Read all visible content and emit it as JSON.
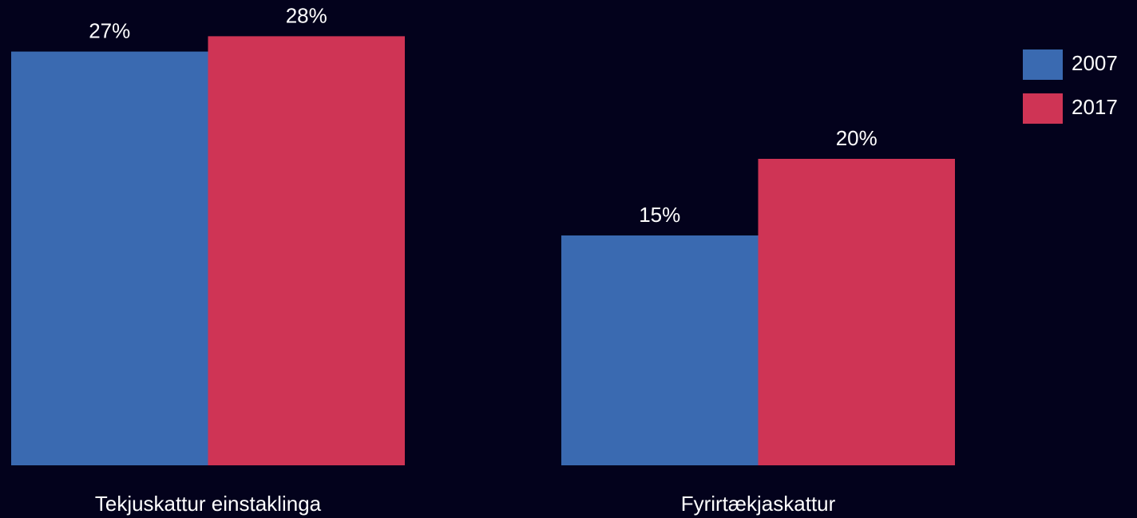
{
  "chart_data": {
    "type": "bar",
    "categories": [
      "Tekjuskattur einstaklinga",
      "Fyrirtækjaskattur"
    ],
    "series": [
      {
        "name": "2007",
        "color": "#3a6ab1",
        "values": [
          27,
          15
        ],
        "value_labels": [
          "27%",
          "15%"
        ]
      },
      {
        "name": "2017",
        "color": "#cf3455",
        "values": [
          28,
          20
        ],
        "value_labels": [
          "28%",
          "20%"
        ]
      }
    ],
    "legend": "upper right"
  }
}
